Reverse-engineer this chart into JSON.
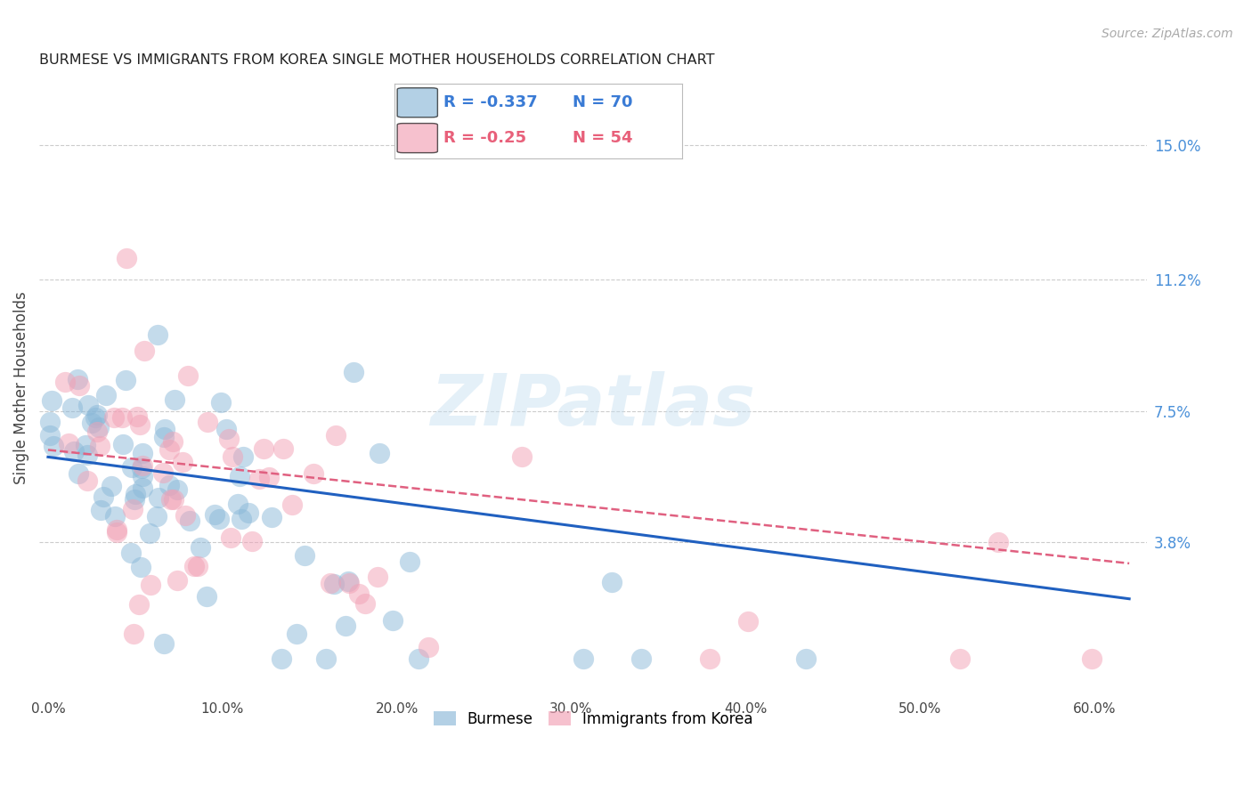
{
  "title": "BURMESE VS IMMIGRANTS FROM KOREA SINGLE MOTHER HOUSEHOLDS CORRELATION CHART",
  "source": "Source: ZipAtlas.com",
  "ylabel": "Single Mother Households",
  "ytick_labels": [
    "15.0%",
    "11.2%",
    "7.5%",
    "3.8%"
  ],
  "ytick_vals": [
    0.15,
    0.112,
    0.075,
    0.038
  ],
  "xtick_labels": [
    "0.0%",
    "10.0%",
    "20.0%",
    "30.0%",
    "40.0%",
    "50.0%",
    "60.0%"
  ],
  "xtick_vals": [
    0.0,
    0.1,
    0.2,
    0.3,
    0.4,
    0.5,
    0.6
  ],
  "ylim": [
    -0.005,
    0.168
  ],
  "xlim": [
    -0.005,
    0.63
  ],
  "burmese_color": "#8ab8d8",
  "korea_color": "#f2a0b5",
  "burmese_R": -0.337,
  "burmese_N": 70,
  "korea_R": -0.25,
  "korea_N": 54,
  "burmese_line_color": "#2060c0",
  "korea_line_color": "#e06080",
  "watermark_text": "ZIPatlas",
  "legend_label_1": "Burmese",
  "legend_label_2": "Immigrants from Korea",
  "burmese_seed": 42,
  "korea_seed": 99,
  "bg_color": "#ffffff",
  "grid_color": "#cccccc",
  "title_color": "#222222",
  "source_color": "#aaaaaa",
  "right_tick_color": "#4a90d9",
  "bottom_tick_color": "#444444"
}
